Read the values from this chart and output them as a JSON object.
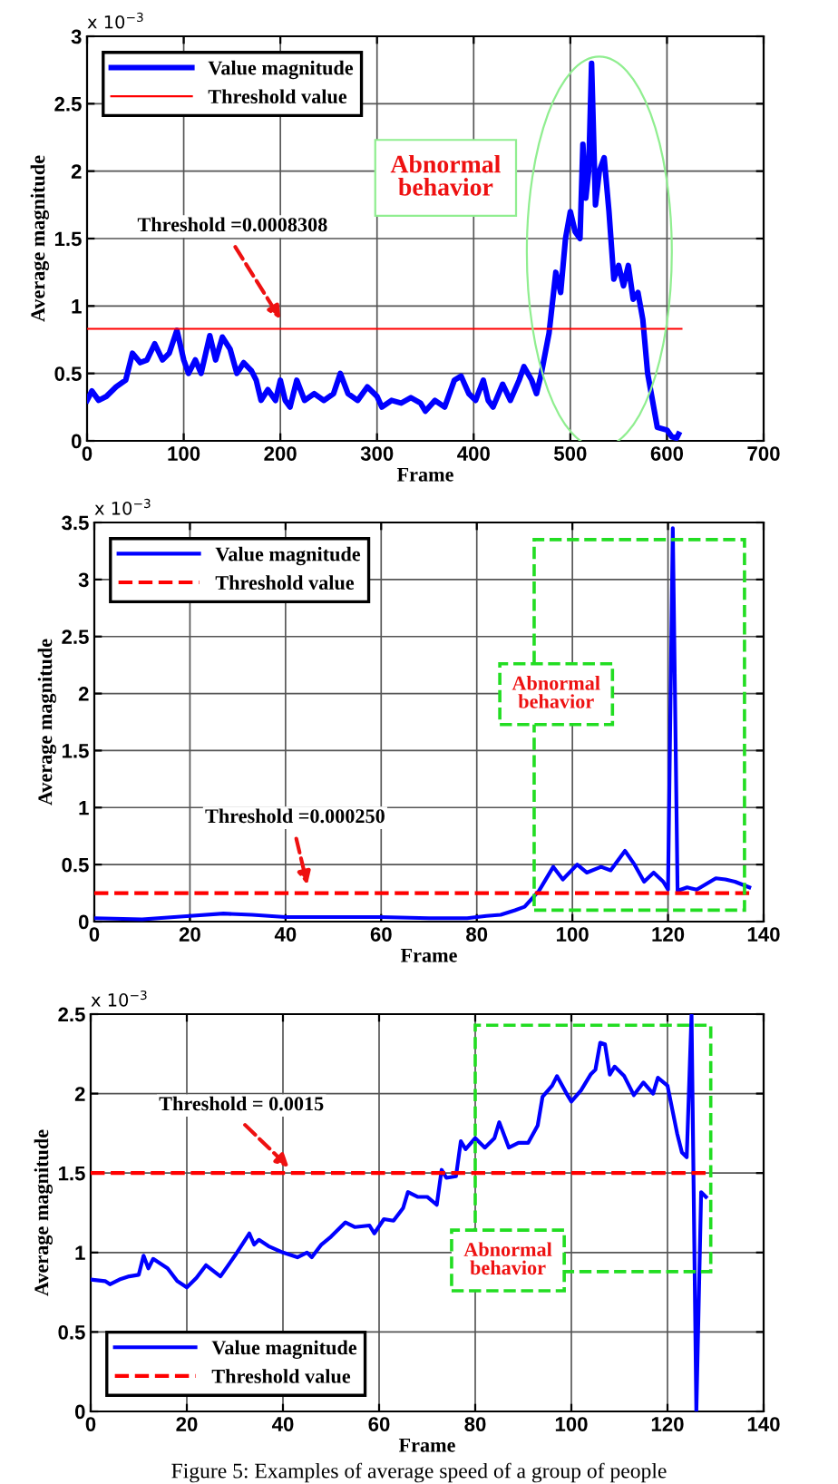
{
  "chart_data": [
    {
      "type": "line",
      "xlabel": "Frame",
      "ylabel": "Average magnitude",
      "xlim": [
        0,
        700
      ],
      "xticks": [
        0,
        100,
        200,
        300,
        400,
        500,
        600,
        700
      ],
      "ylim": [
        0,
        3
      ],
      "yticks": [
        0,
        0.5,
        1,
        1.5,
        2,
        2.5,
        3
      ],
      "grid": true,
      "legend": "top left",
      "series": [
        {
          "name": "Value magnitude",
          "color": "#0000ff",
          "line_style": "solid",
          "x": [
            0,
            5,
            12,
            20,
            30,
            40,
            47,
            55,
            62,
            70,
            78,
            85,
            93,
            100,
            105,
            112,
            118,
            127,
            133,
            140,
            148,
            155,
            162,
            170,
            175,
            180,
            187,
            195,
            200,
            205,
            210,
            217,
            225,
            235,
            245,
            255,
            262,
            270,
            280,
            290,
            300,
            305,
            315,
            325,
            335,
            345,
            350,
            360,
            370,
            380,
            387,
            395,
            402,
            410,
            415,
            420,
            430,
            438,
            447,
            452,
            460,
            465,
            470,
            478,
            485,
            490,
            495,
            500,
            505,
            510,
            513,
            516,
            519,
            522,
            526,
            530,
            535,
            540,
            545,
            550,
            555,
            560,
            565,
            570,
            575,
            580,
            585,
            590,
            600,
            605,
            610,
            612
          ],
          "values": [
            0.3,
            0.37,
            0.3,
            0.33,
            0.4,
            0.45,
            0.65,
            0.58,
            0.6,
            0.72,
            0.6,
            0.65,
            0.82,
            0.6,
            0.5,
            0.6,
            0.5,
            0.78,
            0.6,
            0.77,
            0.68,
            0.5,
            0.58,
            0.52,
            0.45,
            0.3,
            0.38,
            0.3,
            0.45,
            0.3,
            0.25,
            0.45,
            0.3,
            0.35,
            0.3,
            0.35,
            0.5,
            0.35,
            0.3,
            0.4,
            0.33,
            0.25,
            0.3,
            0.28,
            0.32,
            0.28,
            0.22,
            0.3,
            0.25,
            0.45,
            0.48,
            0.35,
            0.3,
            0.45,
            0.3,
            0.25,
            0.42,
            0.3,
            0.45,
            0.55,
            0.45,
            0.35,
            0.5,
            0.8,
            1.25,
            1.1,
            1.5,
            1.7,
            1.55,
            1.5,
            2.2,
            1.8,
            2.0,
            2.8,
            1.75,
            2.0,
            2.1,
            1.7,
            1.2,
            1.3,
            1.15,
            1.3,
            1.05,
            1.1,
            0.9,
            0.5,
            0.3,
            0.1,
            0.08,
            0.03,
            0.02,
            0.05
          ]
        },
        {
          "name": "Threshold value",
          "color": "#ff0000",
          "line_style": "solid",
          "x": [
            0,
            615
          ],
          "values": [
            0.8308,
            0.8308
          ]
        }
      ],
      "annotations": [
        "x 10$^{−3}$",
        "Threshold =0.0008308",
        "Abnormal\nbehavior"
      ]
    },
    {
      "type": "line",
      "xlabel": "Frame",
      "ylabel": "Average magnitude",
      "xlim": [
        0,
        140
      ],
      "xticks": [
        0,
        20,
        40,
        60,
        80,
        100,
        120,
        140
      ],
      "ylim": [
        0,
        3.5
      ],
      "yticks": [
        0,
        0.5,
        1,
        1.5,
        2,
        2.5,
        3,
        3.5
      ],
      "grid": true,
      "legend": "top left",
      "series": [
        {
          "name": "Value magnitude",
          "color": "#0000ff",
          "line_style": "solid",
          "x": [
            0,
            10,
            20,
            27,
            33,
            40,
            50,
            60,
            70,
            78,
            82,
            85,
            88,
            90,
            93,
            96,
            98,
            101,
            103,
            106,
            108,
            111,
            113,
            115,
            117,
            119,
            120,
            121,
            122,
            124,
            126,
            128,
            130,
            132,
            134,
            137
          ],
          "values": [
            0.03,
            0.02,
            0.05,
            0.07,
            0.06,
            0.04,
            0.04,
            0.04,
            0.03,
            0.03,
            0.05,
            0.06,
            0.1,
            0.13,
            0.27,
            0.48,
            0.37,
            0.5,
            0.43,
            0.48,
            0.45,
            0.62,
            0.5,
            0.35,
            0.43,
            0.35,
            0.28,
            3.45,
            0.27,
            0.3,
            0.28,
            0.33,
            0.38,
            0.37,
            0.35,
            0.3
          ]
        },
        {
          "name": "Threshold value",
          "color": "#ff0000",
          "line_style": "dashed",
          "x": [
            0,
            137
          ],
          "values": [
            0.25,
            0.25
          ]
        }
      ],
      "annotations": [
        "x 10$^{−3}$",
        "Threshold =0.000250",
        "Abnormal\nbehavior"
      ]
    },
    {
      "type": "line",
      "xlabel": "Frame",
      "ylabel": "Average magnitude",
      "xlim": [
        0,
        140
      ],
      "xticks": [
        0,
        20,
        40,
        60,
        80,
        100,
        120,
        140
      ],
      "ylim": [
        0,
        2.5
      ],
      "yticks": [
        0,
        0.5,
        1,
        1.5,
        2,
        2.5
      ],
      "grid": true,
      "legend": "bottom left",
      "series": [
        {
          "name": "Value magnitude",
          "color": "#0000ff",
          "line_style": "solid",
          "x": [
            0,
            3,
            4,
            6,
            8,
            10,
            11,
            12,
            13,
            16,
            18,
            20,
            22,
            24,
            27,
            30,
            33,
            34,
            35,
            37,
            40,
            43,
            45,
            46,
            48,
            50,
            53,
            55,
            58,
            59,
            61,
            63,
            65,
            66,
            68,
            70,
            72,
            73,
            74,
            76,
            77,
            78,
            80,
            82,
            84,
            85,
            87,
            89,
            91,
            93,
            94,
            96,
            97,
            99,
            100,
            102,
            104,
            105,
            106,
            107,
            108,
            109,
            111,
            113,
            115,
            117,
            118,
            120,
            122,
            123,
            124,
            125,
            126,
            127,
            128
          ],
          "values": [
            0.83,
            0.82,
            0.8,
            0.83,
            0.85,
            0.86,
            0.98,
            0.9,
            0.96,
            0.9,
            0.82,
            0.78,
            0.84,
            0.92,
            0.85,
            0.98,
            1.12,
            1.05,
            1.08,
            1.04,
            1.0,
            0.97,
            1.0,
            0.97,
            1.05,
            1.1,
            1.19,
            1.16,
            1.17,
            1.12,
            1.21,
            1.2,
            1.28,
            1.38,
            1.35,
            1.35,
            1.3,
            1.52,
            1.47,
            1.48,
            1.7,
            1.65,
            1.72,
            1.66,
            1.72,
            1.82,
            1.66,
            1.69,
            1.69,
            1.8,
            1.98,
            2.05,
            2.11,
            2.0,
            1.95,
            2.02,
            2.12,
            2.15,
            2.32,
            2.31,
            2.12,
            2.17,
            2.11,
            1.99,
            2.07,
            2.0,
            2.1,
            2.05,
            1.75,
            1.63,
            1.6,
            2.5,
            0.0,
            1.38,
            1.35
          ]
        },
        {
          "name": "Threshold value",
          "color": "#ff0000",
          "line_style": "dashed",
          "x": [
            0,
            129
          ],
          "values": [
            1.5,
            1.5
          ]
        }
      ],
      "annotations": [
        "x 10$^{−3}$",
        "Threshold = 0.0015",
        "Abnormal\nbehavior",
        "Figure 5: Examples of average speed of a group of people"
      ]
    }
  ]
}
